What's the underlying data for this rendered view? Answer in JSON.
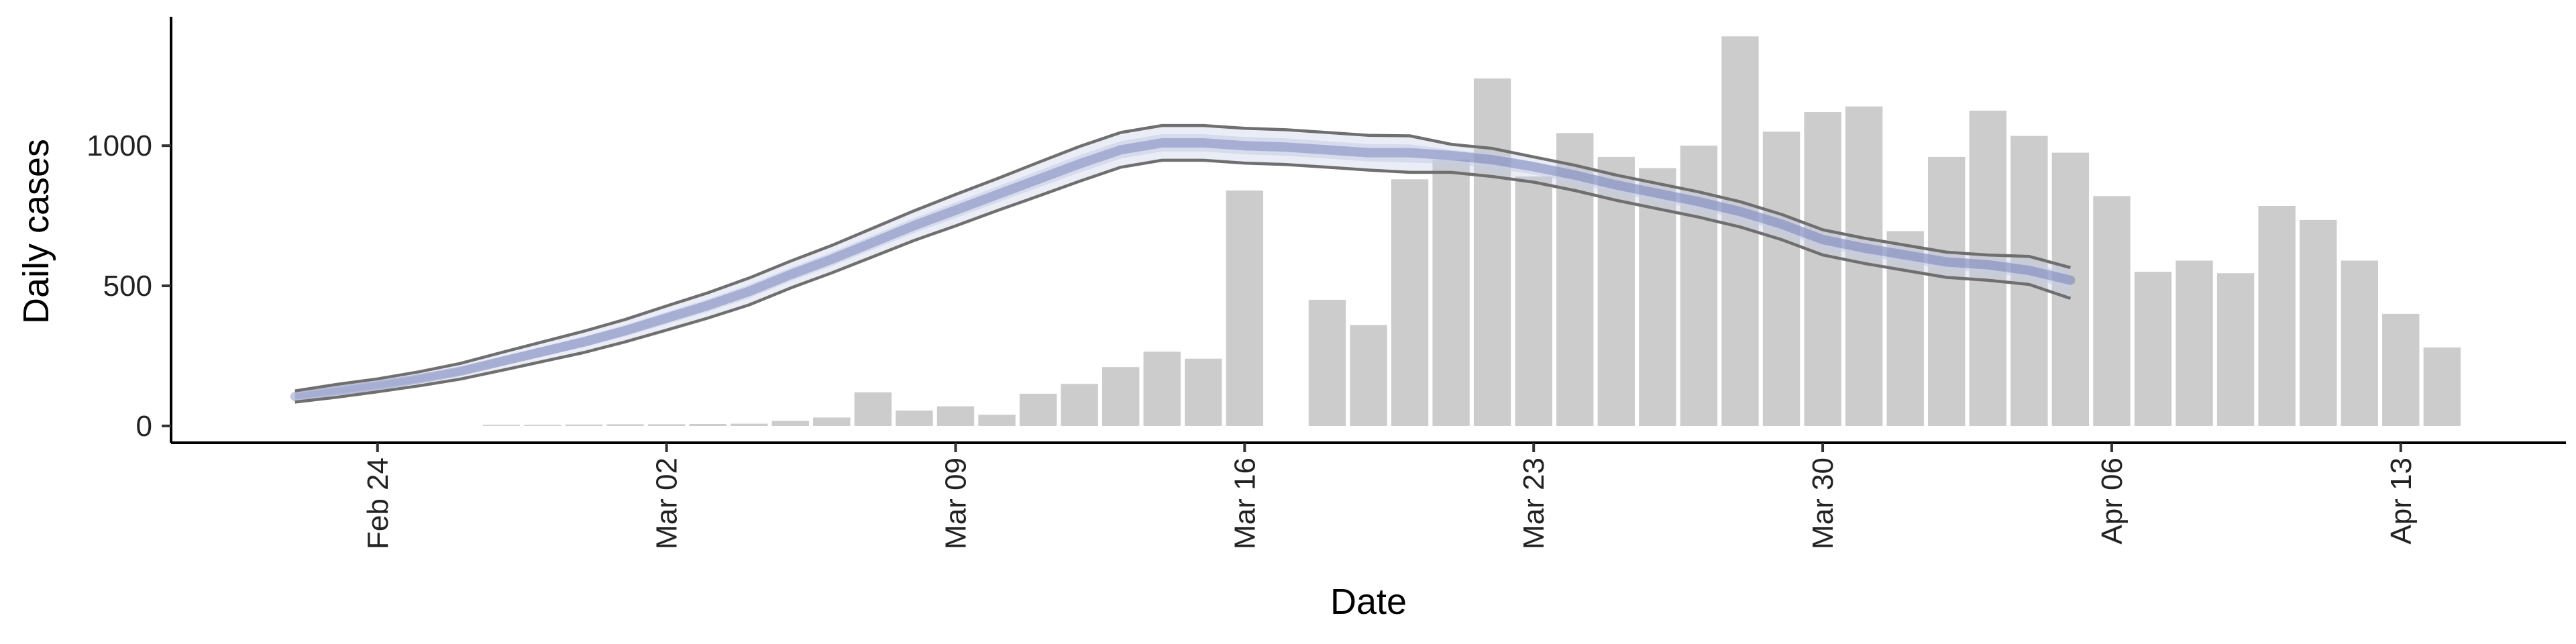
{
  "chart_data": {
    "type": "bar",
    "xlabel": "Date",
    "ylabel": "Daily cases",
    "x_ticks": [
      {
        "label": "Feb 24",
        "date": "2020-02-24"
      },
      {
        "label": "Mar 02",
        "date": "2020-03-02"
      },
      {
        "label": "Mar 09",
        "date": "2020-03-09"
      },
      {
        "label": "Mar 16",
        "date": "2020-03-16"
      },
      {
        "label": "Mar 23",
        "date": "2020-03-23"
      },
      {
        "label": "Mar 30",
        "date": "2020-03-30"
      },
      {
        "label": "Apr 06",
        "date": "2020-04-06"
      },
      {
        "label": "Apr 13",
        "date": "2020-04-13"
      }
    ],
    "y_ticks": [
      0,
      500,
      1000
    ],
    "xlim": [
      "2020-02-19",
      "2020-04-17"
    ],
    "ylim": [
      -60,
      1460
    ],
    "grid": false,
    "bar_color": "#cccccc",
    "bars": {
      "dates": [
        "2020-02-27",
        "2020-02-28",
        "2020-02-29",
        "2020-03-01",
        "2020-03-02",
        "2020-03-03",
        "2020-03-04",
        "2020-03-05",
        "2020-03-06",
        "2020-03-07",
        "2020-03-08",
        "2020-03-09",
        "2020-03-10",
        "2020-03-11",
        "2020-03-12",
        "2020-03-13",
        "2020-03-14",
        "2020-03-15",
        "2020-03-16",
        "2020-03-18",
        "2020-03-19",
        "2020-03-20",
        "2020-03-21",
        "2020-03-22",
        "2020-03-23",
        "2020-03-24",
        "2020-03-25",
        "2020-03-26",
        "2020-03-27",
        "2020-03-28",
        "2020-03-29",
        "2020-03-30",
        "2020-03-31",
        "2020-04-01",
        "2020-04-02",
        "2020-04-03",
        "2020-04-04",
        "2020-04-05",
        "2020-04-06",
        "2020-04-07",
        "2020-04-08",
        "2020-04-09",
        "2020-04-10",
        "2020-04-11",
        "2020-04-12",
        "2020-04-13",
        "2020-04-14"
      ],
      "values": [
        4,
        4,
        5,
        6,
        6,
        7,
        8,
        18,
        30,
        120,
        55,
        70,
        40,
        115,
        150,
        210,
        265,
        240,
        840,
        450,
        360,
        880,
        950,
        1240,
        890,
        1045,
        960,
        920,
        1000,
        1390,
        1050,
        1120,
        1140,
        695,
        960,
        1125,
        1035,
        975,
        820,
        550,
        590,
        545,
        785,
        735,
        590,
        400,
        280
      ]
    },
    "series": [
      {
        "color": "#2f3a8f",
        "band_color": "#c5cce6",
        "dates": [
          "2020-02-22",
          "2020-02-23",
          "2020-02-24",
          "2020-02-25",
          "2020-02-26",
          "2020-02-27",
          "2020-02-28",
          "2020-02-29",
          "2020-03-01",
          "2020-03-02",
          "2020-03-03",
          "2020-03-04",
          "2020-03-05",
          "2020-03-06",
          "2020-03-07",
          "2020-03-08",
          "2020-03-09",
          "2020-03-10",
          "2020-03-11",
          "2020-03-12",
          "2020-03-13",
          "2020-03-14",
          "2020-03-15",
          "2020-03-16",
          "2020-03-17",
          "2020-03-18",
          "2020-03-19",
          "2020-03-20",
          "2020-03-21",
          "2020-03-22",
          "2020-03-23",
          "2020-03-24",
          "2020-03-25",
          "2020-03-26",
          "2020-03-27",
          "2020-03-28",
          "2020-03-29",
          "2020-03-30",
          "2020-03-31",
          "2020-04-01",
          "2020-04-02",
          "2020-04-03",
          "2020-04-04",
          "2020-04-05"
        ],
        "mid": [
          105,
          125,
          145,
          168,
          195,
          230,
          265,
          300,
          340,
          385,
          430,
          480,
          540,
          595,
          655,
          715,
          770,
          825,
          880,
          935,
          985,
          1010,
          1010,
          1000,
          995,
          985,
          975,
          975,
          965,
          950,
          925,
          895,
          860,
          830,
          800,
          765,
          720,
          665,
          635,
          610,
          585,
          575,
          555,
          520
        ],
        "upper": [
          125,
          148,
          168,
          193,
          223,
          262,
          300,
          338,
          380,
          428,
          475,
          528,
          588,
          644,
          706,
          768,
          826,
          882,
          940,
          997,
          1047,
          1072,
          1072,
          1062,
          1057,
          1047,
          1037,
          1035,
          1005,
          990,
          960,
          930,
          895,
          865,
          835,
          800,
          755,
          700,
          670,
          645,
          620,
          610,
          605,
          565
        ],
        "lower": [
          85,
          102,
          122,
          143,
          167,
          198,
          230,
          262,
          300,
          342,
          385,
          432,
          492,
          546,
          604,
          662,
          714,
          768,
          820,
          873,
          923,
          948,
          948,
          938,
          933,
          923,
          913,
          905,
          905,
          890,
          870,
          840,
          805,
          775,
          745,
          710,
          665,
          610,
          580,
          555,
          530,
          520,
          505,
          455
        ]
      }
    ]
  }
}
